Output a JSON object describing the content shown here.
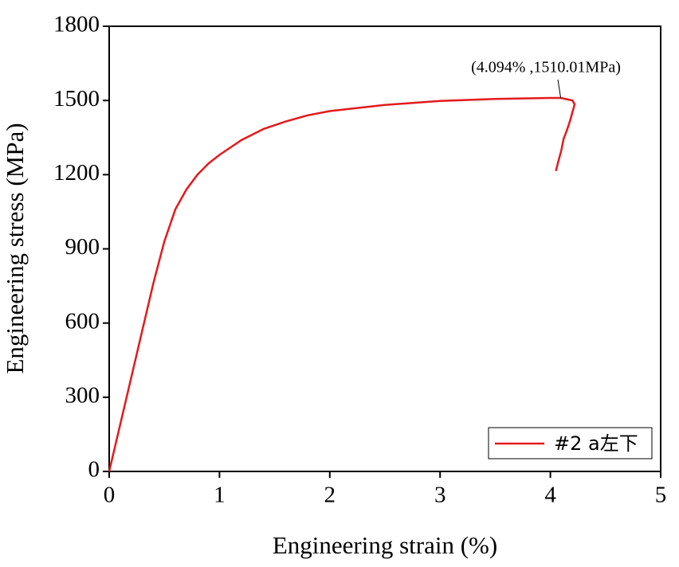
{
  "chart_data": {
    "type": "line",
    "x_label": "Engineering strain (%)",
    "y_label": "Engineering stress (MPa)",
    "annotation": "(4.094% ,1510.01MPa)",
    "xlim": [
      0,
      5
    ],
    "xticks": [
      0,
      1,
      2,
      3,
      4,
      5
    ],
    "ylim": [
      0,
      1800
    ],
    "yticks": [
      0,
      300,
      600,
      900,
      1200,
      1500,
      1800
    ],
    "legend": "bottom-right",
    "series": [
      {
        "name": "#2 a左下",
        "color": "#e31a1c",
        "x": [
          0,
          0.1,
          0.2,
          0.3,
          0.4,
          0.5,
          0.6,
          0.7,
          0.8,
          0.9,
          1.0,
          1.2,
          1.4,
          1.6,
          1.8,
          2.0,
          2.5,
          3.0,
          3.5,
          4.0,
          4.094,
          4.2,
          4.22,
          4.18,
          4.15,
          4.12,
          4.1,
          4.07,
          4.05
        ],
        "values": [
          0,
          190,
          380,
          570,
          760,
          930,
          1060,
          1140,
          1200,
          1245,
          1280,
          1340,
          1385,
          1415,
          1440,
          1457,
          1482,
          1498,
          1506,
          1510,
          1510.01,
          1500,
          1485,
          1420,
          1380,
          1345,
          1300,
          1250,
          1215
        ]
      }
    ]
  }
}
